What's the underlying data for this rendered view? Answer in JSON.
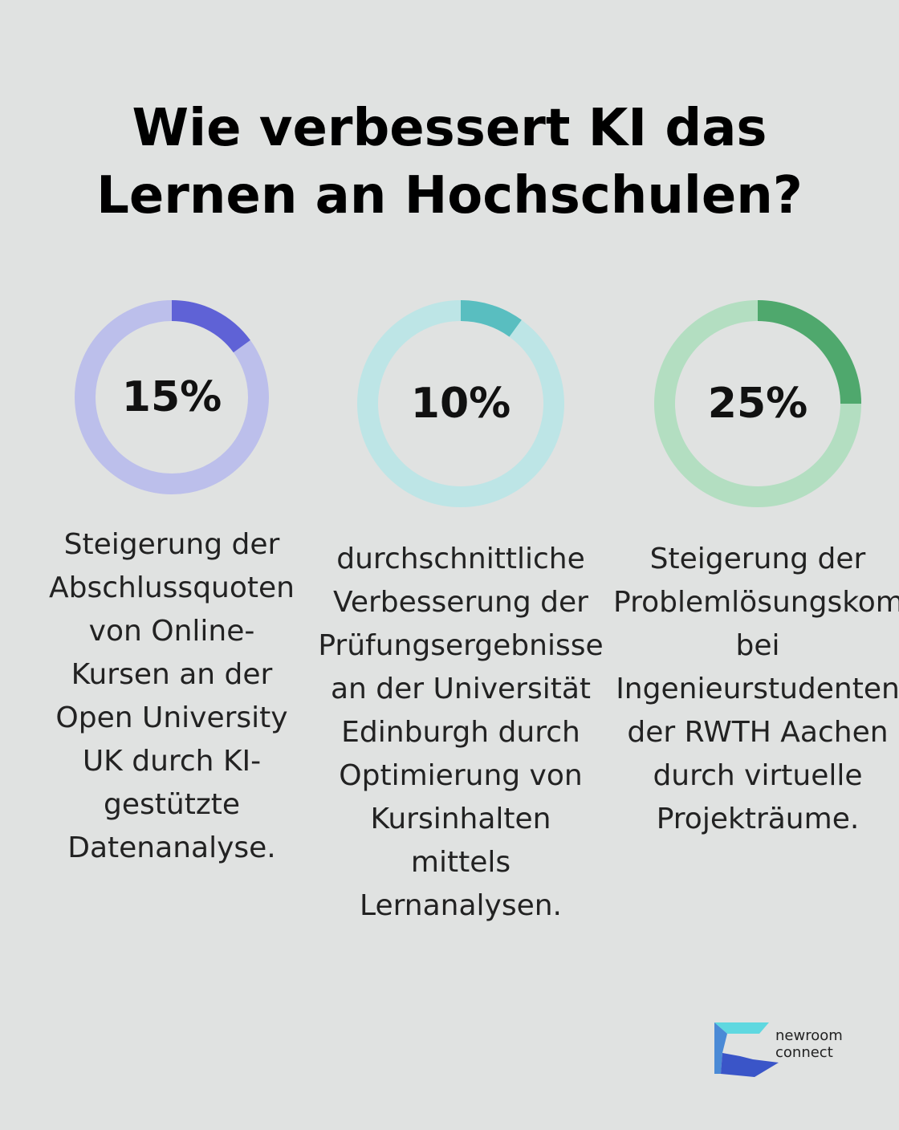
{
  "title": {
    "line1": "Wie verbessert KI das",
    "line2": "Lernen an Hochschulen?"
  },
  "chart_data": {
    "type": "donut",
    "items": [
      {
        "value": 15,
        "label": "15%",
        "description": "Steigerung der\nAbschlussquoten\nvon Online-\nKursen an der\nOpen University\nUK durch KI-\ngestützte\nDatenanalyse.",
        "color_fill": "#5f62d6",
        "color_track": "#bcbfeb"
      },
      {
        "value": 10,
        "label": "10%",
        "description": "durchschnittliche\nVerbesserung der\nPrüfungsergebnisse\nan der Universität\nEdinburgh durch\nOptimierung von\nKursinhalten\nmittels\nLernanalysen.",
        "color_fill": "#59bec0",
        "color_track": "#bde5e6"
      },
      {
        "value": 25,
        "label": "25%",
        "description": "Steigerung der\nProblemlösungskom\nbei\nIngenieurstudenten\nder RWTH Aachen\ndurch virtuelle\nProjekträume.",
        "color_fill": "#4fa86d",
        "color_track": "#b3dec1"
      }
    ]
  },
  "logo": {
    "line1": "newroom",
    "line2": "connect",
    "colors": [
      "#5fd8e0",
      "#4a8ad6",
      "#3a55c8"
    ]
  }
}
